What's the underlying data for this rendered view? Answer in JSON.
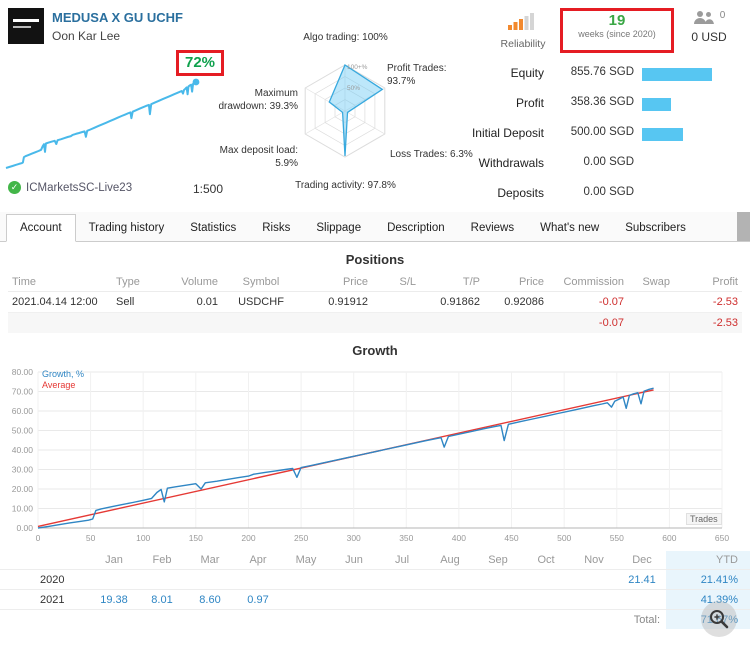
{
  "header": {
    "title": "MEDUSA X GU UCHF",
    "author": "Oon Kar Lee",
    "growth_badge": "72%",
    "broker": "ICMarketsSC-Live23",
    "leverage": "1:500",
    "reliability_label": "Reliability",
    "weeks_value": "19",
    "weeks_label": "weeks (since 2020)",
    "subscribers_count": "0",
    "subscribers_funds": "0 USD",
    "stats": [
      {
        "label": "Equity",
        "value": "855.76 SGD"
      },
      {
        "label": "Profit",
        "value": "358.36 SGD"
      },
      {
        "label": "Initial Deposit",
        "value": "500.00 SGD"
      },
      {
        "label": "Withdrawals",
        "value": "0.00 SGD"
      },
      {
        "label": "Deposits",
        "value": "0.00 SGD"
      }
    ]
  },
  "icons": {
    "check": "✓"
  },
  "colors": {
    "accent_bar_blue": "#57c6f2",
    "growth_green": "#0fa14d",
    "highlight_red": "#e51c23",
    "value_blue": "#2f86c4",
    "title_blue": "#2a6f9e",
    "negative_red": "#cf2e2e"
  },
  "tabs": [
    {
      "label": "Account",
      "active": true
    },
    {
      "label": "Trading history",
      "active": false
    },
    {
      "label": "Statistics",
      "active": false
    },
    {
      "label": "Risks",
      "active": false
    },
    {
      "label": "Slippage",
      "active": false
    },
    {
      "label": "Description",
      "active": false
    },
    {
      "label": "Reviews",
      "active": false
    },
    {
      "label": "What's new",
      "active": false
    },
    {
      "label": "Subscribers",
      "active": false
    }
  ],
  "positions": {
    "title": "Positions",
    "columns": [
      "Time",
      "Type",
      "Volume",
      "Symbol",
      "Price",
      "S/L",
      "T/P",
      "Price",
      "Commission",
      "Swap",
      "Profit"
    ],
    "rows": [
      [
        "2021.04.14 12:00",
        "Sell",
        "0.01",
        "USDCHF",
        "0.91912",
        "",
        "0.91862",
        "0.92086",
        "-0.07",
        "",
        "-2.53"
      ]
    ],
    "totals": {
      "commission": "-0.07",
      "profit": "-2.53"
    }
  },
  "monthly": {
    "months": [
      "Jan",
      "Feb",
      "Mar",
      "Apr",
      "May",
      "Jun",
      "Jul",
      "Aug",
      "Sep",
      "Oct",
      "Nov",
      "Dec",
      "YTD"
    ],
    "rows": [
      {
        "year": "2020",
        "cells": [
          "",
          "",
          "",
          "",
          "",
          "",
          "",
          "",
          "",
          "",
          "",
          "21.41"
        ],
        "ytd": "21.41%"
      },
      {
        "year": "2021",
        "cells": [
          "19.38",
          "8.01",
          "8.60",
          "0.97",
          "",
          "",
          "",
          "",
          "",
          "",
          "",
          ""
        ],
        "ytd": "41.39%"
      }
    ],
    "total_label": "Total:",
    "total_value": "71.67%"
  },
  "chart_data": [
    {
      "name": "growth",
      "type": "line",
      "title": "Growth",
      "x_note": "Trades",
      "xlim": [
        0,
        650
      ],
      "ylim": [
        0,
        80
      ],
      "xtick": 50,
      "ytick": 10,
      "legend_position": "top-left",
      "series": [
        {
          "name": "Growth, %",
          "color": "#2f86c4",
          "points": [
            [
              0,
              0
            ],
            [
              10,
              0.8
            ],
            [
              20,
              1.7
            ],
            [
              30,
              2.6
            ],
            [
              40,
              3.4
            ],
            [
              48,
              4.0
            ],
            [
              52,
              4.6
            ],
            [
              55,
              9.0
            ],
            [
              60,
              9.8
            ],
            [
              70,
              10.9
            ],
            [
              80,
              12.0
            ],
            [
              90,
              13.1
            ],
            [
              100,
              14.2
            ],
            [
              108,
              15.2
            ],
            [
              113,
              18.2
            ],
            [
              117,
              19.8
            ],
            [
              120,
              13.4
            ],
            [
              123,
              20.4
            ],
            [
              130,
              21.1
            ],
            [
              140,
              21.9
            ],
            [
              150,
              22.7
            ],
            [
              155,
              20.0
            ],
            [
              159,
              23.2
            ],
            [
              170,
              24.0
            ],
            [
              180,
              24.9
            ],
            [
              190,
              25.8
            ],
            [
              200,
              26.6
            ],
            [
              205,
              27.6
            ],
            [
              215,
              28.4
            ],
            [
              225,
              29.2
            ],
            [
              235,
              30.0
            ],
            [
              242,
              30.5
            ],
            [
              246,
              26.0
            ],
            [
              250,
              31.0
            ],
            [
              260,
              32.1
            ],
            [
              272,
              33.5
            ],
            [
              284,
              34.9
            ],
            [
              296,
              36.3
            ],
            [
              308,
              37.7
            ],
            [
              320,
              39.1
            ],
            [
              332,
              40.5
            ],
            [
              344,
              41.9
            ],
            [
              356,
              43.3
            ],
            [
              368,
              44.7
            ],
            [
              378,
              45.8
            ],
            [
              383,
              46.3
            ],
            [
              386,
              41.5
            ],
            [
              390,
              46.9
            ],
            [
              400,
              48.1
            ],
            [
              412,
              49.5
            ],
            [
              424,
              50.9
            ],
            [
              434,
              52.0
            ],
            [
              440,
              52.6
            ],
            [
              443,
              44.8
            ],
            [
              447,
              53.2
            ],
            [
              458,
              54.5
            ],
            [
              470,
              55.9
            ],
            [
              482,
              57.3
            ],
            [
              494,
              58.7
            ],
            [
              506,
              60.1
            ],
            [
              518,
              61.5
            ],
            [
              528,
              62.7
            ],
            [
              536,
              63.6
            ],
            [
              541,
              64.2
            ],
            [
              545,
              62.0
            ],
            [
              548,
              65.0
            ],
            [
              552,
              66.0
            ],
            [
              556,
              67.2
            ],
            [
              559,
              61.4
            ],
            [
              562,
              68.0
            ],
            [
              566,
              68.8
            ],
            [
              570,
              69.4
            ],
            [
              573,
              63.7
            ],
            [
              576,
              70.2
            ],
            [
              580,
              71.0
            ],
            [
              585,
              71.7
            ]
          ]
        },
        {
          "name": "Average",
          "color": "#e53935",
          "points": [
            [
              0,
              0.8
            ],
            [
              585,
              70.8
            ]
          ]
        }
      ]
    },
    {
      "name": "distribution",
      "type": "radar",
      "ring_labels": [
        "50%",
        "100+%"
      ],
      "axes": [
        {
          "label": "Algo trading: 100%",
          "value": 100
        },
        {
          "label": "Profit Trades: 93.7%",
          "value": 93.7
        },
        {
          "label": "Loss Trades: 6.3%",
          "value": 6.3
        },
        {
          "label": "Trading activity: 97.8%",
          "value": 97.8
        },
        {
          "label": "Max deposit load: 5.9%",
          "value": 5.9
        },
        {
          "label": "Maximum drawdown: 39.3%",
          "value": 39.3
        }
      ]
    }
  ]
}
